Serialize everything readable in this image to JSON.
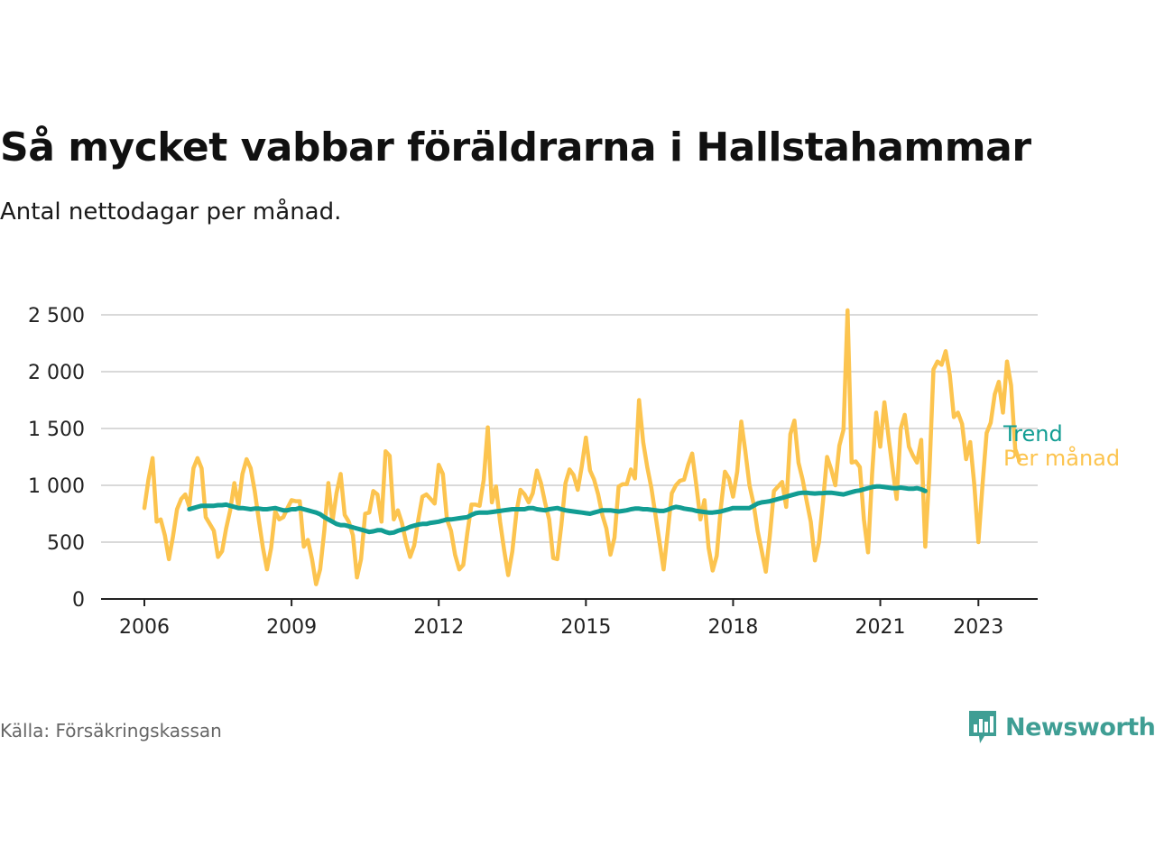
{
  "title": "Så mycket vabbar föräldrarna i Hallstahammar",
  "subtitle": "Antal nettodagar per månad.",
  "source": "Källa: Försäkringskassan",
  "brand": "Newsworthy",
  "colors": {
    "monthly": "#fcc44f",
    "trend": "#129d93",
    "grid": "#d9d9d9",
    "axis": "#222222",
    "brand": "#3f9e94"
  },
  "chart_data": {
    "type": "line",
    "x_label": "",
    "y_label": "",
    "ylim": [
      0,
      2600
    ],
    "xlim": [
      "2006-01",
      "2023-12"
    ],
    "y_ticks": [
      0,
      500,
      1000,
      1500,
      2000,
      2500
    ],
    "y_tick_labels": [
      "0",
      "500",
      "1 000",
      "1 500",
      "2 000",
      "2 500"
    ],
    "x_ticks": [
      "2006-01",
      "2009-01",
      "2012-01",
      "2015-01",
      "2018-01",
      "2021-01",
      "2023-01"
    ],
    "x_tick_labels": [
      "2006",
      "2009",
      "2012",
      "2015",
      "2018",
      "2021",
      "2023"
    ],
    "grid": true,
    "legend": "inline-right",
    "series": [
      {
        "name": "Per månad",
        "color": "#fcc44f",
        "start": "2006-01",
        "values": [
          800,
          1050,
          1240,
          680,
          700,
          560,
          350,
          550,
          790,
          880,
          920,
          810,
          1150,
          1240,
          1150,
          720,
          660,
          600,
          370,
          420,
          620,
          780,
          1020,
          820,
          1100,
          1230,
          1150,
          950,
          690,
          450,
          260,
          450,
          770,
          700,
          720,
          800,
          870,
          860,
          860,
          460,
          520,
          350,
          130,
          260,
          600,
          1020,
          680,
          930,
          1100,
          740,
          680,
          560,
          190,
          350,
          750,
          760,
          950,
          920,
          680,
          1300,
          1260,
          700,
          780,
          670,
          500,
          370,
          470,
          700,
          900,
          920,
          880,
          840,
          1180,
          1100,
          700,
          600,
          390,
          260,
          300,
          580,
          830,
          830,
          820,
          1050,
          1510,
          850,
          990,
          680,
          430,
          210,
          420,
          760,
          960,
          920,
          850,
          930,
          1130,
          1020,
          850,
          700,
          360,
          350,
          650,
          1020,
          1140,
          1090,
          960,
          1170,
          1420,
          1130,
          1050,
          920,
          740,
          620,
          390,
          540,
          990,
          1010,
          1010,
          1140,
          1060,
          1750,
          1380,
          1160,
          980,
          740,
          500,
          260,
          580,
          930,
          1000,
          1040,
          1050,
          1180,
          1280,
          1000,
          700,
          870,
          450,
          250,
          380,
          800,
          1120,
          1060,
          900,
          1120,
          1560,
          1300,
          1000,
          840,
          600,
          420,
          240,
          560,
          950,
          990,
          1030,
          810,
          1450,
          1570,
          1200,
          1050,
          860,
          680,
          340,
          500,
          860,
          1250,
          1140,
          1000,
          1350,
          1490,
          2540,
          1200,
          1210,
          1160,
          700,
          410,
          1100,
          1640,
          1340,
          1730,
          1430,
          1150,
          880,
          1500,
          1620,
          1340,
          1260,
          1200,
          1400,
          460,
          1100,
          2020,
          2090,
          2060,
          2180,
          1970,
          1600,
          1640,
          1540,
          1230,
          1380,
          1000,
          500,
          1000,
          1460,
          1550,
          1800,
          1910,
          1640,
          2090,
          1880,
          1320,
          1220
        ]
      },
      {
        "name": "Trend",
        "color": "#129d93",
        "start": "2006-12",
        "values": [
          790,
          800,
          810,
          820,
          820,
          820,
          820,
          825,
          825,
          830,
          820,
          810,
          800,
          800,
          795,
          790,
          795,
          795,
          790,
          790,
          795,
          800,
          790,
          780,
          780,
          790,
          790,
          800,
          790,
          780,
          770,
          760,
          745,
          720,
          700,
          680,
          660,
          650,
          650,
          640,
          630,
          620,
          610,
          600,
          590,
          595,
          605,
          605,
          590,
          580,
          585,
          600,
          610,
          620,
          635,
          645,
          655,
          660,
          660,
          670,
          675,
          680,
          690,
          700,
          700,
          705,
          710,
          715,
          720,
          740,
          755,
          760,
          760,
          760,
          765,
          770,
          775,
          780,
          785,
          790,
          790,
          790,
          790,
          800,
          800,
          790,
          785,
          780,
          790,
          795,
          800,
          790,
          780,
          775,
          770,
          765,
          760,
          755,
          750,
          760,
          770,
          780,
          780,
          780,
          775,
          770,
          775,
          780,
          790,
          795,
          795,
          790,
          790,
          785,
          780,
          775,
          775,
          785,
          800,
          810,
          805,
          795,
          790,
          785,
          775,
          770,
          765,
          760,
          760,
          765,
          770,
          780,
          790,
          800,
          800,
          800,
          800,
          800,
          820,
          840,
          850,
          855,
          860,
          870,
          880,
          890,
          900,
          910,
          920,
          930,
          935,
          935,
          930,
          928,
          930,
          932,
          935,
          935,
          930,
          925,
          920,
          930,
          940,
          950,
          955,
          965,
          975,
          985,
          990,
          990,
          985,
          980,
          975,
          975,
          980,
          975,
          970,
          970,
          975,
          965,
          950
        ]
      }
    ]
  }
}
